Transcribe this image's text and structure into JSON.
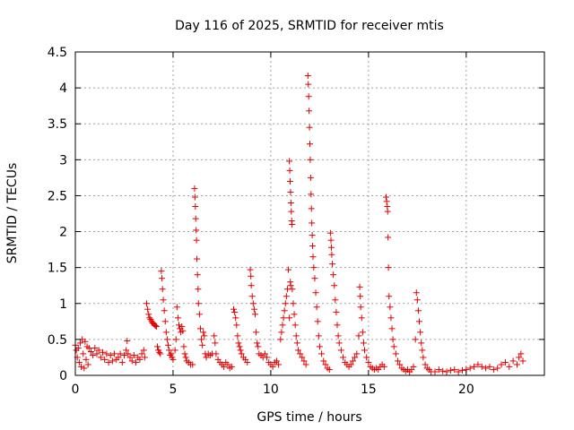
{
  "chart_data": {
    "type": "scatter",
    "title": "Day 116 of 2025, SRMTID for receiver mtis",
    "xlabel": "GPS time / hours",
    "ylabel": "SRMTID / TECUs",
    "xlim": [
      0,
      24
    ],
    "ylim": [
      0,
      4.5
    ],
    "x_ticks": [
      0,
      5,
      10,
      15,
      20
    ],
    "x_tick_labels": [
      "0",
      "5",
      "10",
      "15",
      "20"
    ],
    "y_ticks": [
      0,
      0.5,
      1,
      1.5,
      2,
      2.5,
      3,
      3.5,
      4,
      4.5
    ],
    "y_tick_labels": [
      "0",
      "0.5",
      "1",
      "1.5",
      "2",
      "2.5",
      "3",
      "3.5",
      "4",
      "4.5"
    ],
    "grid": true,
    "marker": "plus",
    "marker_color": "#e00000",
    "series": [
      {
        "name": "SRMTID",
        "points": [
          [
            0.0,
            0.42
          ],
          [
            0.05,
            0.35
          ],
          [
            0.1,
            0.25
          ],
          [
            0.15,
            0.38
          ],
          [
            0.2,
            0.18
          ],
          [
            0.25,
            0.45
          ],
          [
            0.3,
            0.12
          ],
          [
            0.35,
            0.5
          ],
          [
            0.4,
            0.3
          ],
          [
            0.45,
            0.1
          ],
          [
            0.5,
            0.47
          ],
          [
            0.55,
            0.22
          ],
          [
            0.6,
            0.4
          ],
          [
            0.65,
            0.15
          ],
          [
            0.7,
            0.38
          ],
          [
            0.8,
            0.33
          ],
          [
            0.9,
            0.28
          ],
          [
            1.0,
            0.38
          ],
          [
            1.1,
            0.3
          ],
          [
            1.2,
            0.35
          ],
          [
            1.3,
            0.25
          ],
          [
            1.4,
            0.32
          ],
          [
            1.5,
            0.22
          ],
          [
            1.6,
            0.3
          ],
          [
            1.7,
            0.18
          ],
          [
            1.8,
            0.28
          ],
          [
            1.9,
            0.2
          ],
          [
            2.0,
            0.3
          ],
          [
            2.1,
            0.22
          ],
          [
            2.2,
            0.25
          ],
          [
            2.3,
            0.3
          ],
          [
            2.4,
            0.18
          ],
          [
            2.5,
            0.28
          ],
          [
            2.6,
            0.35
          ],
          [
            2.65,
            0.48
          ],
          [
            2.7,
            0.3
          ],
          [
            2.8,
            0.25
          ],
          [
            2.9,
            0.2
          ],
          [
            3.0,
            0.28
          ],
          [
            3.1,
            0.18
          ],
          [
            3.2,
            0.25
          ],
          [
            3.3,
            0.22
          ],
          [
            3.4,
            0.3
          ],
          [
            3.5,
            0.35
          ],
          [
            3.55,
            0.25
          ],
          [
            3.65,
            1.0
          ],
          [
            3.7,
            0.92
          ],
          [
            3.75,
            0.85
          ],
          [
            3.8,
            0.8
          ],
          [
            3.85,
            0.78
          ],
          [
            3.9,
            0.75
          ],
          [
            3.95,
            0.73
          ],
          [
            4.0,
            0.72
          ],
          [
            4.05,
            0.7
          ],
          [
            4.1,
            0.69
          ],
          [
            4.15,
            0.68
          ],
          [
            4.2,
            0.4
          ],
          [
            4.25,
            0.35
          ],
          [
            4.3,
            0.32
          ],
          [
            4.35,
            0.3
          ],
          [
            4.4,
            1.45
          ],
          [
            4.43,
            1.35
          ],
          [
            4.46,
            1.2
          ],
          [
            4.5,
            1.05
          ],
          [
            4.55,
            0.9
          ],
          [
            4.6,
            0.75
          ],
          [
            4.65,
            0.6
          ],
          [
            4.7,
            0.5
          ],
          [
            4.75,
            0.42
          ],
          [
            4.8,
            0.35
          ],
          [
            4.85,
            0.28
          ],
          [
            4.9,
            0.3
          ],
          [
            4.95,
            0.25
          ],
          [
            5.0,
            0.22
          ],
          [
            5.1,
            0.35
          ],
          [
            5.15,
            0.5
          ],
          [
            5.2,
            0.95
          ],
          [
            5.25,
            0.8
          ],
          [
            5.3,
            0.7
          ],
          [
            5.35,
            0.65
          ],
          [
            5.4,
            0.6
          ],
          [
            5.45,
            0.68
          ],
          [
            5.5,
            0.62
          ],
          [
            5.55,
            0.4
          ],
          [
            5.6,
            0.3
          ],
          [
            5.65,
            0.25
          ],
          [
            5.7,
            0.2
          ],
          [
            5.8,
            0.18
          ],
          [
            5.9,
            0.15
          ],
          [
            6.0,
            0.15
          ],
          [
            6.1,
            2.6
          ],
          [
            6.12,
            2.48
          ],
          [
            6.14,
            2.35
          ],
          [
            6.16,
            2.18
          ],
          [
            6.18,
            2.02
          ],
          [
            6.2,
            1.88
          ],
          [
            6.22,
            1.62
          ],
          [
            6.25,
            1.4
          ],
          [
            6.28,
            1.2
          ],
          [
            6.3,
            1.0
          ],
          [
            6.35,
            0.85
          ],
          [
            6.4,
            0.65
          ],
          [
            6.45,
            0.5
          ],
          [
            6.5,
            0.42
          ],
          [
            6.55,
            0.6
          ],
          [
            6.6,
            0.55
          ],
          [
            6.65,
            0.3
          ],
          [
            6.7,
            0.25
          ],
          [
            6.8,
            0.3
          ],
          [
            6.9,
            0.28
          ],
          [
            7.0,
            0.3
          ],
          [
            7.1,
            0.55
          ],
          [
            7.15,
            0.45
          ],
          [
            7.2,
            0.3
          ],
          [
            7.3,
            0.22
          ],
          [
            7.4,
            0.18
          ],
          [
            7.5,
            0.15
          ],
          [
            7.6,
            0.12
          ],
          [
            7.7,
            0.18
          ],
          [
            7.8,
            0.15
          ],
          [
            7.9,
            0.1
          ],
          [
            8.0,
            0.12
          ],
          [
            8.1,
            0.92
          ],
          [
            8.15,
            0.88
          ],
          [
            8.2,
            0.8
          ],
          [
            8.25,
            0.7
          ],
          [
            8.3,
            0.55
          ],
          [
            8.35,
            0.45
          ],
          [
            8.4,
            0.4
          ],
          [
            8.45,
            0.35
          ],
          [
            8.5,
            0.3
          ],
          [
            8.6,
            0.25
          ],
          [
            8.7,
            0.22
          ],
          [
            8.8,
            0.18
          ],
          [
            8.95,
            1.47
          ],
          [
            8.98,
            1.38
          ],
          [
            9.0,
            1.25
          ],
          [
            9.05,
            1.1
          ],
          [
            9.1,
            1.0
          ],
          [
            9.15,
            0.92
          ],
          [
            9.2,
            0.85
          ],
          [
            9.25,
            0.6
          ],
          [
            9.3,
            0.45
          ],
          [
            9.35,
            0.4
          ],
          [
            9.4,
            0.3
          ],
          [
            9.5,
            0.28
          ],
          [
            9.6,
            0.25
          ],
          [
            9.7,
            0.3
          ],
          [
            9.8,
            0.25
          ],
          [
            9.9,
            0.18
          ],
          [
            10.0,
            0.15
          ],
          [
            10.1,
            0.12
          ],
          [
            10.2,
            0.18
          ],
          [
            10.3,
            0.2
          ],
          [
            10.4,
            0.15
          ],
          [
            10.5,
            0.5
          ],
          [
            10.55,
            0.6
          ],
          [
            10.6,
            0.7
          ],
          [
            10.65,
            0.8
          ],
          [
            10.7,
            0.9
          ],
          [
            10.75,
            1.0
          ],
          [
            10.8,
            1.1
          ],
          [
            10.85,
            1.2
          ],
          [
            10.9,
            1.47
          ],
          [
            10.95,
            0.8
          ],
          [
            11.0,
            1.3
          ],
          [
            11.02,
            1.25
          ],
          [
            10.95,
            2.98
          ],
          [
            10.97,
            2.85
          ],
          [
            10.99,
            2.7
          ],
          [
            11.01,
            2.55
          ],
          [
            11.03,
            2.4
          ],
          [
            11.05,
            2.28
          ],
          [
            11.07,
            2.15
          ],
          [
            11.09,
            2.1
          ],
          [
            11.1,
            1.2
          ],
          [
            11.15,
            1.0
          ],
          [
            11.2,
            0.85
          ],
          [
            11.25,
            0.7
          ],
          [
            11.3,
            0.55
          ],
          [
            11.35,
            0.45
          ],
          [
            11.4,
            0.35
          ],
          [
            11.5,
            0.3
          ],
          [
            11.6,
            0.25
          ],
          [
            11.7,
            0.2
          ],
          [
            11.8,
            0.15
          ],
          [
            11.9,
            4.17
          ],
          [
            11.92,
            4.05
          ],
          [
            11.94,
            3.88
          ],
          [
            11.96,
            3.68
          ],
          [
            11.98,
            3.45
          ],
          [
            12.0,
            3.22
          ],
          [
            12.02,
            3.0
          ],
          [
            12.04,
            2.75
          ],
          [
            12.06,
            2.52
          ],
          [
            12.08,
            2.32
          ],
          [
            12.1,
            2.12
          ],
          [
            12.12,
            1.95
          ],
          [
            12.14,
            1.8
          ],
          [
            12.16,
            1.65
          ],
          [
            12.2,
            1.5
          ],
          [
            12.25,
            1.35
          ],
          [
            12.3,
            1.15
          ],
          [
            12.35,
            0.95
          ],
          [
            12.4,
            0.75
          ],
          [
            12.45,
            0.55
          ],
          [
            12.5,
            0.4
          ],
          [
            12.6,
            0.3
          ],
          [
            12.7,
            0.2
          ],
          [
            12.8,
            0.15
          ],
          [
            12.9,
            0.1
          ],
          [
            13.0,
            0.08
          ],
          [
            13.05,
            1.98
          ],
          [
            13.08,
            1.88
          ],
          [
            13.1,
            1.78
          ],
          [
            13.12,
            1.68
          ],
          [
            13.15,
            1.55
          ],
          [
            13.2,
            1.4
          ],
          [
            13.25,
            1.25
          ],
          [
            13.3,
            1.05
          ],
          [
            13.35,
            0.88
          ],
          [
            13.4,
            0.7
          ],
          [
            13.45,
            0.55
          ],
          [
            13.5,
            0.45
          ],
          [
            13.6,
            0.35
          ],
          [
            13.7,
            0.25
          ],
          [
            13.8,
            0.18
          ],
          [
            13.9,
            0.15
          ],
          [
            14.0,
            0.12
          ],
          [
            14.1,
            0.15
          ],
          [
            14.2,
            0.2
          ],
          [
            14.3,
            0.25
          ],
          [
            14.4,
            0.3
          ],
          [
            14.5,
            0.55
          ],
          [
            14.55,
            1.23
          ],
          [
            14.58,
            1.1
          ],
          [
            14.6,
            0.95
          ],
          [
            14.65,
            0.8
          ],
          [
            14.7,
            0.6
          ],
          [
            14.75,
            0.45
          ],
          [
            14.8,
            0.35
          ],
          [
            14.9,
            0.25
          ],
          [
            15.0,
            0.18
          ],
          [
            15.1,
            0.12
          ],
          [
            15.2,
            0.1
          ],
          [
            15.3,
            0.08
          ],
          [
            15.4,
            0.1
          ],
          [
            15.5,
            0.08
          ],
          [
            15.6,
            0.12
          ],
          [
            15.7,
            0.15
          ],
          [
            15.8,
            0.12
          ],
          [
            15.9,
            2.48
          ],
          [
            15.93,
            2.42
          ],
          [
            15.96,
            2.35
          ],
          [
            15.98,
            2.28
          ],
          [
            16.0,
            1.92
          ],
          [
            16.02,
            1.5
          ],
          [
            16.05,
            1.1
          ],
          [
            16.1,
            0.95
          ],
          [
            16.15,
            0.8
          ],
          [
            16.2,
            0.65
          ],
          [
            16.25,
            0.5
          ],
          [
            16.3,
            0.4
          ],
          [
            16.4,
            0.3
          ],
          [
            16.5,
            0.2
          ],
          [
            16.6,
            0.15
          ],
          [
            16.7,
            0.1
          ],
          [
            16.8,
            0.08
          ],
          [
            16.9,
            0.06
          ],
          [
            17.0,
            0.08
          ],
          [
            17.1,
            0.05
          ],
          [
            17.2,
            0.08
          ],
          [
            17.3,
            0.12
          ],
          [
            17.4,
            0.5
          ],
          [
            17.45,
            1.15
          ],
          [
            17.5,
            1.05
          ],
          [
            17.55,
            0.9
          ],
          [
            17.6,
            0.75
          ],
          [
            17.65,
            0.6
          ],
          [
            17.7,
            0.45
          ],
          [
            17.75,
            0.35
          ],
          [
            17.8,
            0.25
          ],
          [
            17.9,
            0.15
          ],
          [
            18.0,
            0.1
          ],
          [
            18.1,
            0.08
          ],
          [
            18.2,
            0.05
          ],
          [
            18.4,
            0.05
          ],
          [
            18.6,
            0.08
          ],
          [
            18.8,
            0.06
          ],
          [
            19.0,
            0.05
          ],
          [
            19.2,
            0.07
          ],
          [
            19.4,
            0.08
          ],
          [
            19.6,
            0.05
          ],
          [
            19.8,
            0.07
          ],
          [
            20.0,
            0.08
          ],
          [
            20.2,
            0.1
          ],
          [
            20.4,
            0.12
          ],
          [
            20.6,
            0.15
          ],
          [
            20.8,
            0.12
          ],
          [
            21.0,
            0.1
          ],
          [
            21.2,
            0.12
          ],
          [
            21.4,
            0.08
          ],
          [
            21.6,
            0.1
          ],
          [
            21.8,
            0.15
          ],
          [
            22.0,
            0.18
          ],
          [
            22.2,
            0.12
          ],
          [
            22.4,
            0.2
          ],
          [
            22.6,
            0.15
          ],
          [
            22.7,
            0.25
          ],
          [
            22.8,
            0.3
          ],
          [
            22.9,
            0.2
          ]
        ]
      }
    ]
  }
}
